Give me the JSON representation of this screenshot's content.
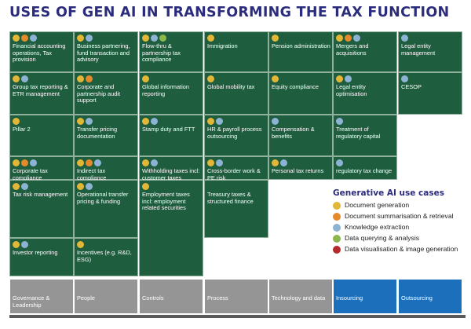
{
  "title": "USES OF GEN AI IN TRANSFORMING THE TAX FUNCTION",
  "cells": [
    {
      "label": "Financial accounting operations, Tax provision",
      "icons": [
        "doc",
        "sum",
        "kx"
      ]
    },
    {
      "label": "Business partnering, fund transaction and advisory",
      "icons": [
        "doc",
        "kx"
      ]
    },
    {
      "label": "Flow-thru & partnership tax compliance",
      "icons": [
        "doc",
        "kx",
        "dq"
      ]
    },
    {
      "label": "Immigration",
      "icons": [
        "doc"
      ]
    },
    {
      "label": "Pension administration",
      "icons": [
        "doc"
      ]
    },
    {
      "label": "Mergers and acquisitions",
      "icons": [
        "doc",
        "sum",
        "kx"
      ]
    },
    {
      "label": "Legal entity management",
      "icons": [
        "kx"
      ]
    },
    {
      "label": "Group tax reporting & ETR management",
      "icons": [
        "doc",
        "kx"
      ]
    },
    {
      "label": "Corporate and partnership audit support",
      "icons": [
        "doc",
        "sum"
      ]
    },
    {
      "label": "Global information reporting",
      "icons": [
        "doc"
      ]
    },
    {
      "label": "Global mobility tax",
      "icons": [
        "doc"
      ]
    },
    {
      "label": "Equity compliance",
      "icons": [
        "doc"
      ]
    },
    {
      "label": "Legal entity optimisation",
      "icons": [
        "doc",
        "kx"
      ]
    },
    {
      "label": "CESOP",
      "icons": [
        "kx"
      ]
    },
    {
      "label": "Pillar 2",
      "icons": [
        "doc"
      ]
    },
    {
      "label": "Transfer pricing documentation",
      "icons": [
        "doc",
        "kx"
      ]
    },
    {
      "label": "Stamp duty and FTT",
      "icons": [
        "doc",
        "kx"
      ]
    },
    {
      "label": "HR & payroll process outsourcing",
      "icons": [
        "doc",
        "kx"
      ]
    },
    {
      "label": "Compensation & benefits",
      "icons": [
        "kx"
      ]
    },
    {
      "label": "Treatment of regulatory capital",
      "icons": [
        "kx"
      ]
    },
    {
      "label": "Corporate tax compliance",
      "icons": [
        "doc",
        "sum",
        "kx"
      ]
    },
    {
      "label": "Indirect tax compliance",
      "icons": [
        "doc",
        "sum",
        "kx"
      ]
    },
    {
      "label": "Withholding taxes incl: customer taxes",
      "icons": [
        "doc",
        "kx"
      ]
    },
    {
      "label": "Cross-border work & PE risk",
      "icons": [
        "doc",
        "kx"
      ]
    },
    {
      "label": "Personal tax returns",
      "icons": [
        "doc",
        "kx"
      ]
    },
    {
      "label": "regulatory tax change",
      "icons": [
        "kx"
      ]
    },
    {
      "label": "Tax risk management",
      "icons": [
        "doc",
        "kx"
      ]
    },
    {
      "label": "Operational transfer pricing & funding",
      "icons": [
        "doc",
        "kx"
      ]
    },
    {
      "label": "Employment taxes incl: employment related securities",
      "icons": [
        "doc"
      ]
    },
    {
      "label": "Treasury taxes & structured finance",
      "icons": []
    },
    {
      "label": "Investor reporting",
      "icons": [
        "doc",
        "kx"
      ]
    },
    {
      "label": "Incentives (e.g. R&D, ESG)",
      "icons": [
        "doc"
      ]
    }
  ],
  "legend": {
    "title": "Generative AI use cases",
    "items": [
      {
        "key": "doc",
        "label": "Document generation"
      },
      {
        "key": "sum",
        "label": "Document summarisation & retrieval"
      },
      {
        "key": "kx",
        "label": "Knowledge extraction"
      },
      {
        "key": "dq",
        "label": "Data querying & analysis"
      },
      {
        "key": "dv",
        "label": "Data visualisation & image generation"
      }
    ]
  },
  "foundation": [
    {
      "label": "Governance & Leadership",
      "color": "#959595"
    },
    {
      "label": "People",
      "color": "#959595"
    },
    {
      "label": "Controls",
      "color": "#959595"
    },
    {
      "label": "Process",
      "color": "#959595"
    },
    {
      "label": "Technology and data",
      "color": "#959595"
    },
    {
      "label": "Insourcing",
      "color": "#1c6fba"
    },
    {
      "label": "Outsourcing",
      "color": "#1c6fba"
    }
  ],
  "colors": {
    "title": "#2b2c7c",
    "cell_bg": "#1f5d3f",
    "doc": "#e2b637",
    "sum": "#e58a2a",
    "kx": "#8db3d4",
    "dq": "#8ab84a",
    "dv": "#b52a2a"
  }
}
